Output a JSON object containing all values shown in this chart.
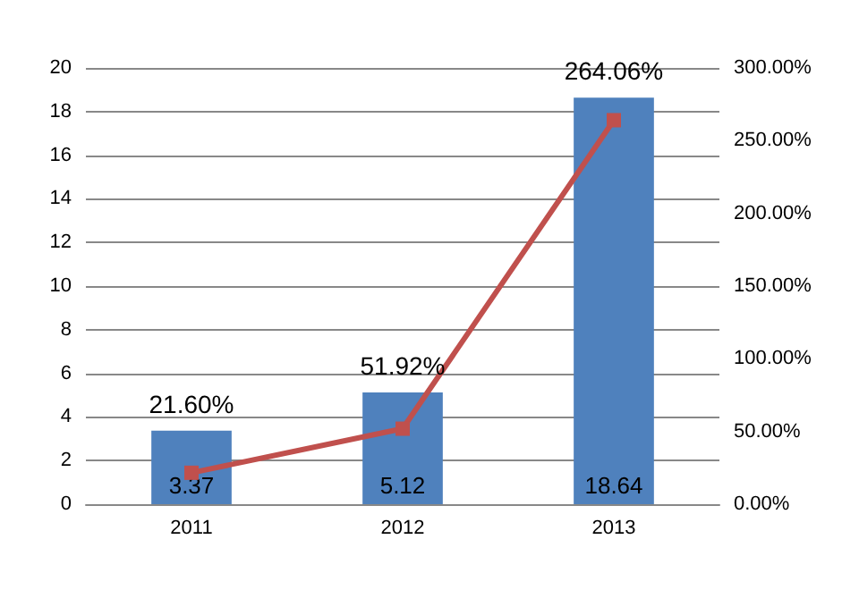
{
  "chart_data": {
    "type": "bar",
    "categories": [
      "2011",
      "2012",
      "2013"
    ],
    "series": [
      {
        "color": "#4f81bd",
        "values": [
          3.37,
          5.12,
          18.64
        ],
        "value_labels": [
          "3.37",
          "5.12",
          "18.64"
        ]
      },
      {
        "type": "line",
        "axis": "y2",
        "color": "#c0504d",
        "values": [
          21.6,
          51.92,
          264.06
        ],
        "value_labels": [
          "21.60%",
          "51.92%",
          "264.06%"
        ]
      }
    ],
    "ylim": [
      0,
      20
    ],
    "yticks": [
      0,
      2,
      4,
      6,
      8,
      10,
      12,
      14,
      16,
      18,
      20
    ],
    "y2lim": [
      0,
      300
    ],
    "y2ticks": [
      {
        "value": 0,
        "label": "0.00%"
      },
      {
        "value": 50,
        "label": "50.00%"
      },
      {
        "value": 100,
        "label": "100.00%"
      },
      {
        "value": 150,
        "label": "150.00%"
      },
      {
        "value": 200,
        "label": "200.00%"
      },
      {
        "value": 250,
        "label": "250.00%"
      },
      {
        "value": 300,
        "label": "300.00%"
      }
    ],
    "grid": "y",
    "marker": "square",
    "line_style": "solid"
  }
}
